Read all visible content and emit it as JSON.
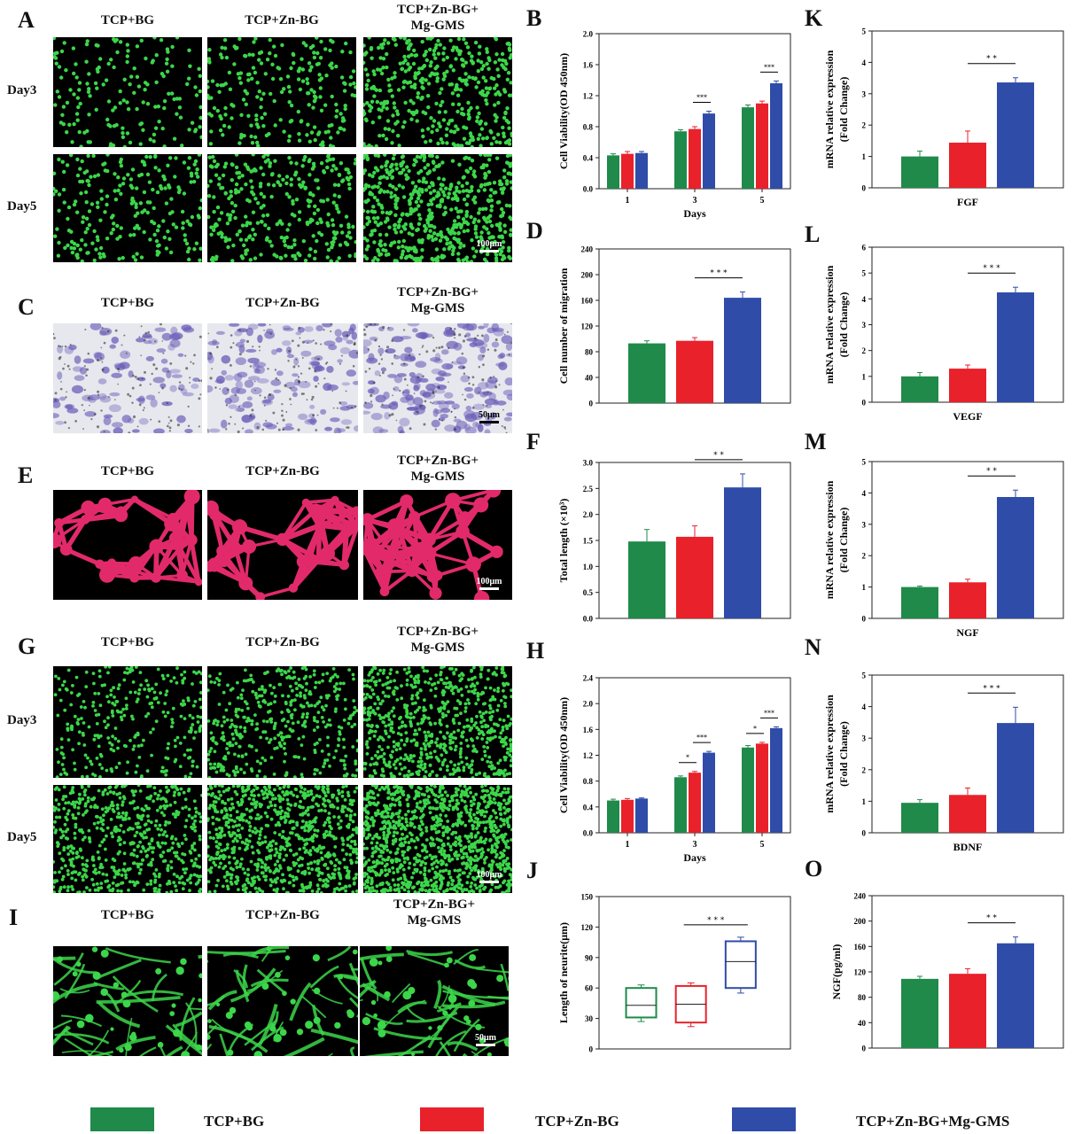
{
  "colors": {
    "bg": "#1f8a4a",
    "znbg": "#e8212a",
    "mg": "#2f4ca8",
    "calcein": "#3cd64a",
    "crystal": "#6b5fb8",
    "tube": "#e22a6a"
  },
  "legend": {
    "items": [
      "TCP+BG",
      "TCP+Zn-BG",
      "TCP+Zn-BG+Mg-GMS"
    ]
  },
  "panels": {
    "A": {
      "label": "A",
      "columns": [
        "TCP+BG",
        "TCP+Zn-BG",
        "TCP+Zn-BG+\nMg-GMS"
      ],
      "rows": [
        "Day3",
        "Day5"
      ],
      "scale": "100μm",
      "stain": "calcein",
      "kind": "dots"
    },
    "C": {
      "label": "C",
      "columns": [
        "TCP+BG",
        "TCP+Zn-BG",
        "TCP+Zn-BG+\nMg-GMS"
      ],
      "rows": [],
      "scale": "50μm",
      "stain": "crystal",
      "kind": "crystal"
    },
    "E": {
      "label": "E",
      "columns": [
        "TCP+BG",
        "TCP+Zn-BG",
        "TCP+Zn-BG+\nMg-GMS"
      ],
      "rows": [],
      "scale": "100μm",
      "stain": "tube",
      "kind": "network"
    },
    "G": {
      "label": "G",
      "columns": [
        "TCP+BG",
        "TCP+Zn-BG",
        "TCP+Zn-BG+\nMg-GMS"
      ],
      "rows": [
        "Day3",
        "Day5"
      ],
      "scale": "100μm",
      "stain": "calcein",
      "kind": "dense"
    },
    "I": {
      "label": "I",
      "columns": [
        "TCP+BG",
        "TCP+Zn-BG",
        "TCP+Zn-BG+\nMg-GMS"
      ],
      "rows": [],
      "scale": "50μm",
      "stain": "calcein",
      "kind": "neurite"
    }
  },
  "chart_data": [
    {
      "id": "B",
      "label": "B",
      "type": "bar",
      "ylabel": "Cell Viability(OD 450nm)",
      "xlabel": "Days",
      "categories": [
        "1",
        "3",
        "5"
      ],
      "ylim": [
        0,
        2.0
      ],
      "yticks": [
        "0.0",
        "0.4",
        "0.8",
        "1.2",
        "1.6",
        "2.0"
      ],
      "series": [
        {
          "values": [
            0.43,
            0.74,
            1.05
          ],
          "err": [
            0.02,
            0.02,
            0.03
          ]
        },
        {
          "values": [
            0.45,
            0.77,
            1.1
          ],
          "err": [
            0.03,
            0.03,
            0.03
          ]
        },
        {
          "values": [
            0.46,
            0.97,
            1.36
          ],
          "err": [
            0.02,
            0.03,
            0.03
          ]
        }
      ],
      "sig": [
        {
          "cat": 1,
          "from": 1,
          "to": 2,
          "text": "***"
        },
        {
          "cat": 2,
          "from": 1,
          "to": 2,
          "text": "***"
        }
      ]
    },
    {
      "id": "D",
      "label": "D",
      "type": "bar",
      "ylabel": "Cell number of migration",
      "xlabel": "",
      "categories": [
        ""
      ],
      "ylim": [
        0,
        240
      ],
      "yticks": [
        "0",
        "40",
        "80",
        "120",
        "160",
        "200",
        "240"
      ],
      "series": [
        {
          "values": [
            93
          ],
          "err": [
            4
          ]
        },
        {
          "values": [
            97
          ],
          "err": [
            5
          ]
        },
        {
          "values": [
            164
          ],
          "err": [
            9
          ]
        }
      ],
      "sig": [
        {
          "cat": 0,
          "from": 1,
          "to": 2,
          "text": "* * *"
        }
      ]
    },
    {
      "id": "F",
      "label": "F",
      "type": "bar",
      "ylabel": "Total length (×10³)",
      "xlabel": "",
      "categories": [
        ""
      ],
      "ylim": [
        0,
        3.0
      ],
      "yticks": [
        "0.0",
        "0.5",
        "1.0",
        "1.5",
        "2.0",
        "2.5",
        "3.0"
      ],
      "series": [
        {
          "values": [
            1.48
          ],
          "err": [
            0.23
          ]
        },
        {
          "values": [
            1.57
          ],
          "err": [
            0.21
          ]
        },
        {
          "values": [
            2.52
          ],
          "err": [
            0.26
          ]
        }
      ],
      "sig": [
        {
          "cat": 0,
          "from": 1,
          "to": 2,
          "text": "* *"
        }
      ]
    },
    {
      "id": "H",
      "label": "H",
      "type": "bar",
      "ylabel": "Cell Viability(OD 450nm)",
      "xlabel": "Days",
      "categories": [
        "1",
        "3",
        "5"
      ],
      "ylim": [
        0,
        2.4
      ],
      "yticks": [
        "0.0",
        "0.4",
        "0.8",
        "1.2",
        "1.6",
        "2.0",
        "2.4"
      ],
      "series": [
        {
          "values": [
            0.5,
            0.86,
            1.32
          ],
          "err": [
            0.02,
            0.02,
            0.03
          ]
        },
        {
          "values": [
            0.51,
            0.93,
            1.38
          ],
          "err": [
            0.02,
            0.02,
            0.02
          ]
        },
        {
          "values": [
            0.53,
            1.24,
            1.62
          ],
          "err": [
            0.01,
            0.02,
            0.02
          ]
        }
      ],
      "sig": [
        {
          "cat": 1,
          "from": 0,
          "to": 1,
          "text": "*"
        },
        {
          "cat": 1,
          "from": 1,
          "to": 2,
          "text": "***"
        },
        {
          "cat": 2,
          "from": 0,
          "to": 1,
          "text": "*"
        },
        {
          "cat": 2,
          "from": 1,
          "to": 2,
          "text": "***"
        }
      ]
    },
    {
      "id": "J",
      "label": "J",
      "type": "box",
      "ylabel": "Length of neurite(μm)",
      "xlabel": "",
      "ylim": [
        0,
        150
      ],
      "yticks": [
        "0",
        "30",
        "60",
        "90",
        "120",
        "150"
      ],
      "boxes": [
        {
          "min": 27,
          "q1": 31,
          "median": 43,
          "q3": 60,
          "max": 63
        },
        {
          "min": 22,
          "q1": 26,
          "median": 44,
          "q3": 62,
          "max": 65
        },
        {
          "min": 55,
          "q1": 60,
          "median": 86,
          "q3": 106,
          "max": 110
        }
      ],
      "sig": [
        {
          "from": 1,
          "to": 2,
          "text": "* * *"
        }
      ]
    },
    {
      "id": "K",
      "label": "K",
      "type": "bar",
      "ylabel": "mRNA relative expression\n(Fold Change)",
      "xlabel": "FGF",
      "categories": [
        ""
      ],
      "ylim": [
        0,
        5
      ],
      "yticks": [
        "0",
        "1",
        "2",
        "3",
        "4",
        "5"
      ],
      "series": [
        {
          "values": [
            1.0
          ],
          "err": [
            0.17
          ]
        },
        {
          "values": [
            1.44
          ],
          "err": [
            0.37
          ]
        },
        {
          "values": [
            3.36
          ],
          "err": [
            0.15
          ]
        }
      ],
      "sig": [
        {
          "cat": 0,
          "from": 1,
          "to": 2,
          "text": "* *"
        }
      ]
    },
    {
      "id": "L",
      "label": "L",
      "type": "bar",
      "ylabel": "mRNA relative expression\n(Fold Change)",
      "xlabel": "VEGF",
      "categories": [
        ""
      ],
      "ylim": [
        0,
        6
      ],
      "yticks": [
        "0",
        "1",
        "2",
        "3",
        "4",
        "5",
        "6"
      ],
      "series": [
        {
          "values": [
            1.0
          ],
          "err": [
            0.15
          ]
        },
        {
          "values": [
            1.3
          ],
          "err": [
            0.14
          ]
        },
        {
          "values": [
            4.25
          ],
          "err": [
            0.2
          ]
        }
      ],
      "sig": [
        {
          "cat": 0,
          "from": 1,
          "to": 2,
          "text": "* * *"
        }
      ]
    },
    {
      "id": "M",
      "label": "M",
      "type": "bar",
      "ylabel": "mRNA relative expression\n(Fold Change)",
      "xlabel": "NGF",
      "categories": [
        ""
      ],
      "ylim": [
        0,
        5
      ],
      "yticks": [
        "0",
        "1",
        "2",
        "3",
        "4",
        "5"
      ],
      "series": [
        {
          "values": [
            1.0
          ],
          "err": [
            0.03
          ]
        },
        {
          "values": [
            1.15
          ],
          "err": [
            0.1
          ]
        },
        {
          "values": [
            3.87
          ],
          "err": [
            0.22
          ]
        }
      ],
      "sig": [
        {
          "cat": 0,
          "from": 1,
          "to": 2,
          "text": "* *"
        }
      ]
    },
    {
      "id": "N",
      "label": "N",
      "type": "bar",
      "ylabel": "mRNA relative expression\n(Fold Change)",
      "xlabel": "BDNF",
      "categories": [
        ""
      ],
      "ylim": [
        0,
        5
      ],
      "yticks": [
        "0",
        "1",
        "2",
        "3",
        "4",
        "5"
      ],
      "series": [
        {
          "values": [
            0.95
          ],
          "err": [
            0.1
          ]
        },
        {
          "values": [
            1.2
          ],
          "err": [
            0.22
          ]
        },
        {
          "values": [
            3.48
          ],
          "err": [
            0.5
          ]
        }
      ],
      "sig": [
        {
          "cat": 0,
          "from": 1,
          "to": 2,
          "text": "* * *"
        }
      ]
    },
    {
      "id": "O",
      "label": "O",
      "type": "bar",
      "ylabel": "NGF(pg/ml)",
      "xlabel": "",
      "categories": [
        ""
      ],
      "ylim": [
        0,
        240
      ],
      "yticks": [
        "0",
        "40",
        "80",
        "120",
        "160",
        "200",
        "240"
      ],
      "series": [
        {
          "values": [
            109
          ],
          "err": [
            4
          ]
        },
        {
          "values": [
            117
          ],
          "err": [
            8
          ]
        },
        {
          "values": [
            165
          ],
          "err": [
            10
          ]
        }
      ],
      "sig": [
        {
          "cat": 0,
          "from": 1,
          "to": 2,
          "text": "* *"
        }
      ]
    }
  ]
}
